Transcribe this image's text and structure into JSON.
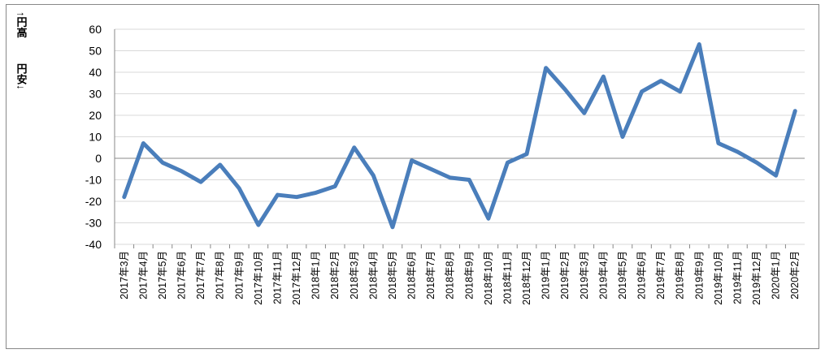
{
  "chart_data": {
    "type": "line",
    "ylabel_top": "↑円高",
    "ylabel_bottom": "円安↓",
    "categories": [
      "2017年3月",
      "2017年4月",
      "2017年5月",
      "2017年6月",
      "2017年7月",
      "2017年8月",
      "2017年9月",
      "2017年10月",
      "2017年11月",
      "2017年12月",
      "2018年1月",
      "2018年2月",
      "2018年3月",
      "2018年4月",
      "2018年5月",
      "2018年6月",
      "2018年7月",
      "2018年8月",
      "2018年9月",
      "2018年10月",
      "2018年11月",
      "2018年12月",
      "2019年1月",
      "2019年2月",
      "2019年3月",
      "2019年4月",
      "2019年5月",
      "2019年6月",
      "2019年7月",
      "2019年8月",
      "2019年9月",
      "2019年10月",
      "2019年11月",
      "2019年12月",
      "2020年1月",
      "2020年2月"
    ],
    "values": [
      -18,
      7,
      -2,
      -6,
      -11,
      -3,
      -14,
      -31,
      -17,
      -18,
      -16,
      -13,
      5,
      -8,
      -32,
      -1,
      -5,
      -9,
      -10,
      -28,
      -2,
      2,
      42,
      32,
      21,
      38,
      10,
      31,
      36,
      31,
      53,
      7,
      3,
      -2,
      -8,
      22
    ],
    "color": "#4a7ebb",
    "ylim": [
      -40,
      60
    ],
    "yticks": [
      -40,
      -30,
      -20,
      -10,
      0,
      10,
      20,
      30,
      40,
      50,
      60
    ],
    "grid": true
  }
}
